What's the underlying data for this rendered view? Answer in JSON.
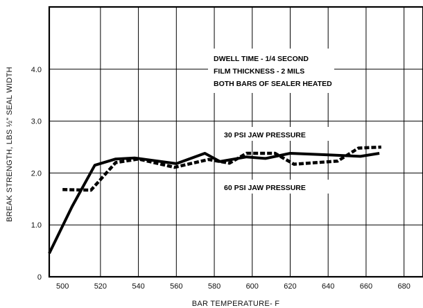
{
  "chart_data": {
    "type": "line",
    "title": "",
    "xlabel": "BAR TEMPERATURE- F",
    "ylabel": "BREAK STRENGTH, LBS ½\" SEAL WIDTH",
    "xlim": [
      493,
      690
    ],
    "ylim": [
      0,
      5.2
    ],
    "x_ticks": [
      500,
      520,
      540,
      560,
      580,
      600,
      620,
      640,
      660,
      680
    ],
    "y_ticks": [
      0,
      1.0,
      2.0,
      3.0,
      4.0
    ],
    "y_tick_labels": [
      "0",
      "1.0",
      "2.0",
      "3.0",
      "4.0"
    ],
    "x_grid": [
      520,
      540,
      560,
      580,
      600,
      620,
      640,
      660,
      680
    ],
    "y_grid": [
      1.0,
      2.0,
      3.0,
      4.0
    ],
    "grid": true,
    "annotations": [
      "DWELL TIME - 1/4 SECOND",
      "FILM THICKNESS - 2 MILS",
      "BOTH BARS OF SEALER HEATED"
    ],
    "series": [
      {
        "name": "30 PSI JAW PRESSURE",
        "style": "solid",
        "x": [
          493,
          505,
          517,
          528,
          538,
          560,
          575,
          583,
          597,
          607,
          620,
          640,
          657,
          667
        ],
        "y": [
          0.45,
          1.35,
          2.15,
          2.27,
          2.29,
          2.18,
          2.38,
          2.22,
          2.31,
          2.28,
          2.38,
          2.35,
          2.32,
          2.38
        ]
      },
      {
        "name": "60 PSI JAW PRESSURE",
        "style": "dashed",
        "x": [
          500,
          515,
          528,
          540,
          559,
          577,
          588,
          597,
          612,
          622,
          645,
          656,
          668
        ],
        "y": [
          1.68,
          1.67,
          2.2,
          2.27,
          2.11,
          2.26,
          2.19,
          2.38,
          2.38,
          2.17,
          2.23,
          2.48,
          2.5
        ]
      }
    ]
  }
}
